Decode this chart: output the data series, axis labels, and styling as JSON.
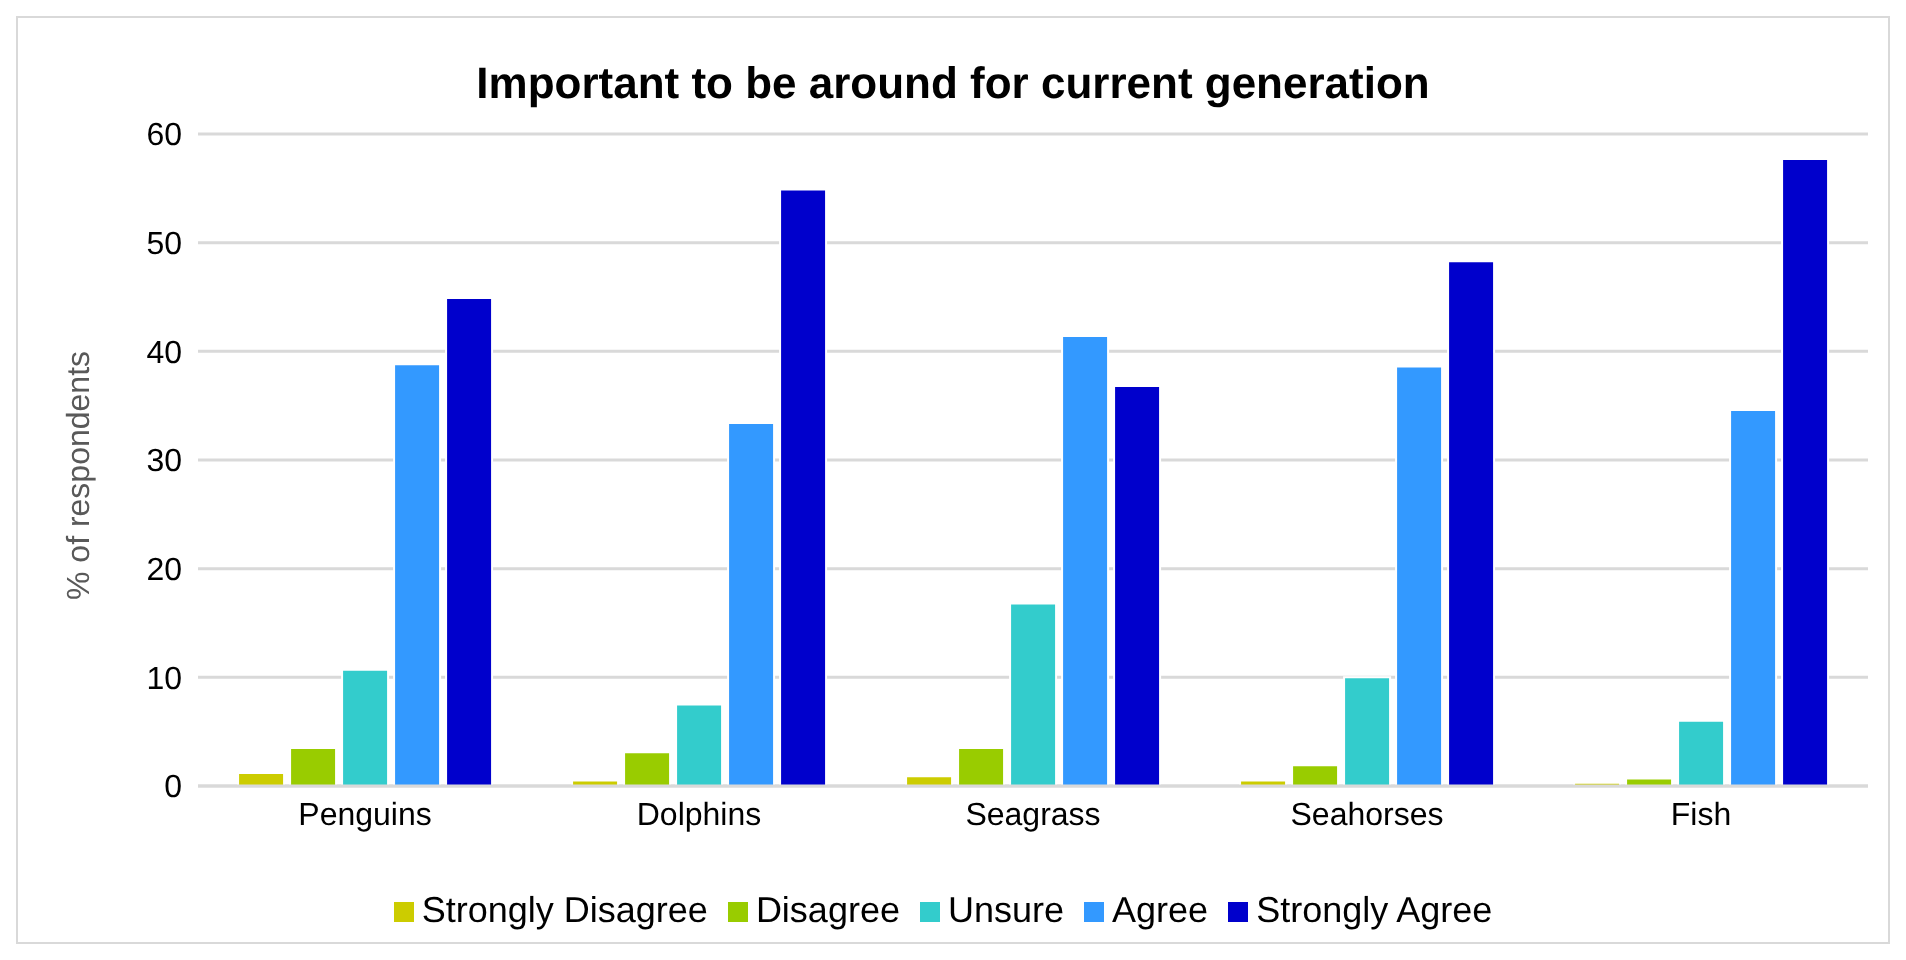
{
  "chart_data": {
    "type": "bar",
    "title": "Important to be around for current generation",
    "ylabel": "% of respondents",
    "categories": [
      "Penguins",
      "Dolphins",
      "Seagrass",
      "Seahorses",
      "Fish"
    ],
    "series": [
      {
        "name": "Strongly Disagree",
        "color": "#cccc00",
        "values": [
          1.2,
          0.5,
          0.9,
          0.5,
          0.3
        ]
      },
      {
        "name": "Disagree",
        "color": "#99cc00",
        "values": [
          3.5,
          3.1,
          3.5,
          1.9,
          0.7
        ]
      },
      {
        "name": "Unsure",
        "color": "#33cccc",
        "values": [
          10.7,
          7.5,
          16.8,
          10.0,
          6.0
        ]
      },
      {
        "name": "Agree",
        "color": "#3399ff",
        "values": [
          38.8,
          33.4,
          41.4,
          38.6,
          34.6
        ]
      },
      {
        "name": "Strongly Agree",
        "color": "#0000cc",
        "values": [
          44.9,
          54.9,
          36.8,
          48.3,
          57.7
        ]
      }
    ],
    "ylim": [
      0,
      60
    ],
    "yticks": [
      0,
      10,
      20,
      30,
      40,
      50,
      60
    ],
    "grid": "y",
    "legend": "bottom"
  }
}
